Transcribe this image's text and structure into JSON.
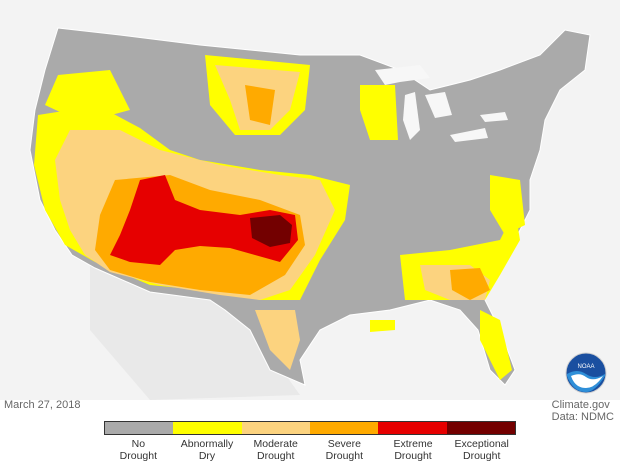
{
  "map": {
    "date": "March 27, 2018",
    "credit_line1": "Climate.gov",
    "credit_line2": "Data: NDMC",
    "logo_text": "NOAA"
  },
  "legend": [
    {
      "label_line1": "No",
      "label_line2": "Drought",
      "color": "#aaaaaa"
    },
    {
      "label_line1": "Abnormally",
      "label_line2": "Dry",
      "color": "#ffff00"
    },
    {
      "label_line1": "Moderate",
      "label_line2": "Drought",
      "color": "#fcd37f"
    },
    {
      "label_line1": "Severe",
      "label_line2": "Drought",
      "color": "#ffaa00"
    },
    {
      "label_line1": "Extreme",
      "label_line2": "Drought",
      "color": "#e60000"
    },
    {
      "label_line1": "Exceptional",
      "label_line2": "Drought",
      "color": "#730000"
    }
  ],
  "colors": {
    "background_land": "#e8e8e8",
    "neighbor_land": "#eeeeee",
    "water": "#f7f7f7",
    "border": "#ffffff"
  }
}
